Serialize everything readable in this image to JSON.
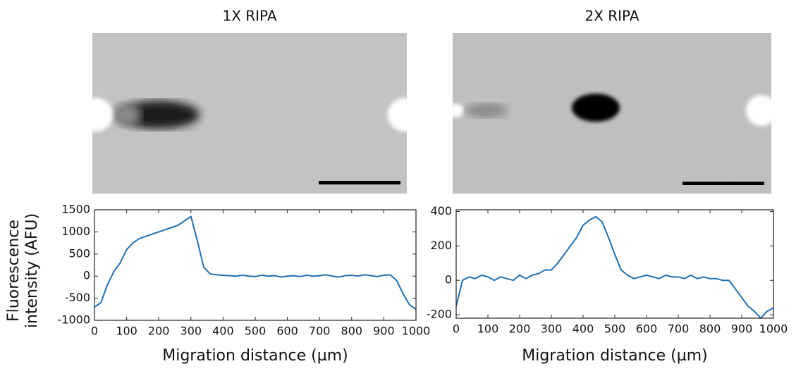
{
  "chart_data": [
    {
      "type": "line",
      "title": "1X RIPA",
      "ylabel": [
        "Fluorescence",
        "intensity (AFU)"
      ],
      "xlabel": "Migration distance (µm)",
      "x": [
        0,
        20,
        40,
        60,
        80,
        100,
        120,
        140,
        160,
        180,
        200,
        220,
        240,
        260,
        280,
        300,
        320,
        340,
        360,
        380,
        400,
        420,
        440,
        460,
        480,
        500,
        520,
        540,
        560,
        580,
        600,
        620,
        640,
        660,
        680,
        700,
        720,
        740,
        760,
        780,
        800,
        820,
        840,
        860,
        880,
        900,
        920,
        940,
        960,
        980,
        1000
      ],
      "series": [
        {
          "name": "1X RIPA",
          "color": "#1f6fb4",
          "values": [
            -700,
            -600,
            -200,
            100,
            300,
            600,
            750,
            850,
            900,
            950,
            1000,
            1050,
            1100,
            1150,
            1250,
            1350,
            800,
            200,
            50,
            30,
            20,
            10,
            0,
            20,
            0,
            -10,
            20,
            0,
            10,
            -20,
            0,
            10,
            -10,
            20,
            0,
            10,
            30,
            0,
            -20,
            10,
            20,
            0,
            30,
            10,
            -10,
            20,
            30,
            -100,
            -400,
            -650,
            -750
          ]
        }
      ],
      "xlim": [
        0,
        1000
      ],
      "xticks": [
        0,
        100,
        200,
        300,
        400,
        500,
        600,
        700,
        800,
        900,
        1000
      ],
      "ylim": [
        -1000,
        1500
      ],
      "yticks": [
        -1000,
        -500,
        0,
        500,
        1000,
        1500
      ]
    },
    {
      "type": "line",
      "title": "2X RIPA",
      "xlabel": "Migration distance (µm)",
      "x": [
        0,
        20,
        40,
        60,
        80,
        100,
        120,
        140,
        160,
        180,
        200,
        220,
        240,
        260,
        280,
        300,
        320,
        340,
        360,
        380,
        400,
        420,
        440,
        460,
        480,
        500,
        520,
        540,
        560,
        580,
        600,
        620,
        640,
        660,
        680,
        700,
        720,
        740,
        760,
        780,
        800,
        820,
        840,
        860,
        880,
        900,
        920,
        940,
        960,
        980,
        1000
      ],
      "series": [
        {
          "name": "2X RIPA",
          "color": "#1f6fb4",
          "values": [
            -150,
            0,
            20,
            10,
            30,
            20,
            0,
            20,
            10,
            0,
            30,
            10,
            30,
            40,
            60,
            60,
            100,
            150,
            200,
            250,
            320,
            350,
            370,
            340,
            250,
            150,
            60,
            30,
            10,
            20,
            30,
            20,
            10,
            30,
            20,
            20,
            10,
            30,
            10,
            20,
            10,
            10,
            0,
            0,
            -50,
            -100,
            -150,
            -180,
            -220,
            -180,
            -160
          ]
        }
      ],
      "xlim": [
        0,
        1000
      ],
      "xticks": [
        0,
        100,
        200,
        300,
        400,
        500,
        600,
        700,
        800,
        900,
        1000
      ],
      "ylim": [
        -220,
        410
      ],
      "yticks": [
        -200,
        0,
        200,
        400
      ]
    }
  ]
}
